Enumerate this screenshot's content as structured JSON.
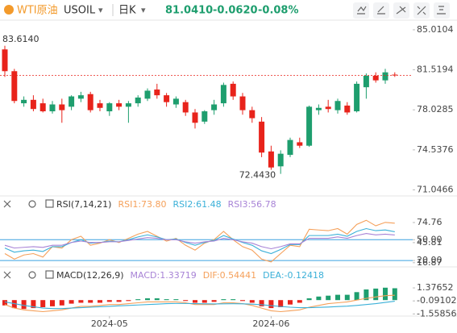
{
  "header": {
    "symbol": "WTI原油",
    "code": "USOIL",
    "period": "日K",
    "price": "81.0410",
    "change": "-0.0620",
    "percent": "-0.08%"
  },
  "chart_data": [
    {
      "type": "candlestick",
      "categories": [
        null,
        null,
        null,
        null,
        null,
        null,
        null,
        null,
        null,
        null,
        null,
        "2024-05",
        null,
        null,
        null,
        null,
        null,
        null,
        null,
        null,
        null,
        null,
        null,
        null,
        null,
        null,
        null,
        null,
        "2024-06",
        null,
        null,
        null,
        null,
        null,
        null,
        null,
        null,
        null,
        null,
        null,
        null,
        null
      ],
      "open": [
        83.3,
        81.4,
        78.6,
        78.9,
        78.6,
        77.9,
        78.5,
        78.3,
        79.0,
        79.4,
        78.6,
        77.9,
        78.6,
        78.3,
        78.6,
        79.0,
        79.8,
        79.3,
        78.5,
        78.7,
        77.8,
        77.0,
        78.0,
        78.6,
        80.3,
        79.2,
        78.0,
        77.0,
        74.4,
        73.1,
        74.1,
        75.2,
        74.9,
        78.0,
        78.3,
        78.0,
        78.4,
        77.9,
        80.0,
        81.0,
        80.6,
        81.1
      ],
      "high": [
        83.614,
        81.6,
        79.2,
        79.3,
        79.0,
        78.8,
        79.0,
        79.3,
        79.6,
        79.6,
        78.9,
        78.7,
        78.9,
        78.8,
        79.3,
        79.9,
        80.3,
        79.5,
        79.2,
        78.9,
        78.1,
        78.0,
        78.9,
        80.4,
        80.5,
        79.5,
        78.3,
        77.4,
        74.9,
        74.5,
        75.6,
        75.6,
        78.4,
        78.5,
        78.9,
        79.0,
        78.7,
        80.5,
        81.2,
        81.3,
        81.6,
        81.3
      ],
      "low": [
        80.9,
        78.6,
        78.3,
        77.9,
        77.8,
        77.7,
        76.9,
        78.0,
        78.7,
        77.8,
        77.9,
        77.5,
        78.0,
        76.9,
        78.3,
        78.8,
        79.0,
        78.3,
        78.2,
        77.5,
        76.4,
        76.8,
        77.6,
        78.3,
        78.9,
        77.6,
        76.9,
        73.9,
        72.8,
        72.443,
        73.9,
        74.7,
        74.8,
        77.6,
        77.8,
        77.7,
        77.6,
        77.8,
        79.0,
        80.4,
        80.3,
        80.9
      ],
      "close": [
        81.4,
        78.8,
        78.9,
        78.1,
        77.9,
        78.5,
        78.0,
        79.2,
        79.3,
        78.0,
        78.2,
        78.6,
        78.3,
        78.6,
        79.1,
        79.7,
        79.3,
        78.7,
        79.0,
        77.8,
        76.9,
        77.9,
        78.5,
        80.2,
        79.2,
        78.0,
        77.3,
        74.3,
        73.0,
        74.2,
        75.4,
        74.9,
        78.3,
        78.2,
        78.1,
        78.8,
        77.8,
        80.3,
        81.0,
        80.6,
        81.3,
        81.041
      ],
      "up_color": "#1e9e6e",
      "down_color": "#e8231b",
      "high_label": "83.6140",
      "low_label": "72.4430",
      "ylim": [
        70.73,
        85.85
      ],
      "yticks": [
        85.0104,
        81.5194,
        78.0285,
        74.5376,
        71.0466
      ],
      "grid": false
    },
    {
      "type": "line",
      "title": "RSI(7,14,21)",
      "series": [
        {
          "name": "RSI1:73.80",
          "color": "#f5a05a",
          "values": [
            30,
            22,
            28,
            30,
            25,
            40,
            38,
            50,
            55,
            42,
            45,
            50,
            46,
            52,
            58,
            62,
            55,
            48,
            52,
            42,
            35,
            45,
            50,
            62,
            50,
            40,
            35,
            22,
            18,
            30,
            42,
            40,
            65,
            64,
            63,
            66,
            58,
            72,
            78,
            70,
            75,
            73.8
          ]
        },
        {
          "name": "RSI2:61.48",
          "color": "#3bb0d8",
          "values": [
            38,
            32,
            34,
            35,
            33,
            40,
            40,
            46,
            50,
            45,
            46,
            48,
            47,
            50,
            54,
            57,
            54,
            50,
            51,
            46,
            42,
            46,
            49,
            56,
            51,
            46,
            42,
            34,
            30,
            36,
            43,
            43,
            56,
            56,
            56,
            58,
            55,
            62,
            66,
            63,
            64,
            61.48
          ]
        },
        {
          "name": "RSI3:56.78",
          "color": "#a883d6",
          "values": [
            42,
            38,
            39,
            40,
            39,
            42,
            42,
            46,
            48,
            46,
            46,
            47,
            47,
            49,
            51,
            53,
            52,
            50,
            50,
            47,
            45,
            47,
            48,
            52,
            50,
            47,
            45,
            40,
            37,
            40,
            44,
            44,
            52,
            52,
            52,
            54,
            52,
            56,
            59,
            57,
            58,
            56.78
          ]
        }
      ],
      "hlines": [
        50,
        20
      ],
      "hline_color": "#3aa0e0",
      "ylim": [
        12,
        91
      ],
      "yticks": [
        74.76,
        {
          "value": 50,
          "label": "50.00"
        },
        45.81,
        16.87,
        {
          "value": 20,
          "label": "20.00"
        }
      ]
    },
    {
      "type": "bar",
      "title": "MACD(12,26,9)",
      "name": "MACD:1.33719",
      "name_color": "#a883d6",
      "values": [
        -0.6,
        -0.9,
        -1.0,
        -0.9,
        -0.8,
        -0.7,
        -0.6,
        -0.4,
        -0.3,
        -0.3,
        -0.3,
        -0.2,
        -0.2,
        -0.1,
        0.1,
        0.2,
        0.2,
        0.1,
        0.1,
        -0.1,
        -0.3,
        -0.3,
        -0.2,
        0.1,
        0.1,
        -0.1,
        -0.3,
        -0.7,
        -0.9,
        -0.8,
        -0.5,
        -0.3,
        0.2,
        0.4,
        0.5,
        0.6,
        0.6,
        0.9,
        1.2,
        1.3,
        1.4,
        1.33719
      ],
      "up_color": "#1e9e6e",
      "down_color": "#e8231b",
      "series": [
        {
          "name": "DIF:0.54441",
          "color": "#f5a05a",
          "values": [
            -0.5,
            -0.9,
            -1.1,
            -1.2,
            -1.3,
            -1.2,
            -1.1,
            -0.9,
            -0.7,
            -0.7,
            -0.6,
            -0.5,
            -0.5,
            -0.4,
            -0.3,
            -0.2,
            -0.2,
            -0.2,
            -0.2,
            -0.3,
            -0.5,
            -0.5,
            -0.5,
            -0.3,
            -0.3,
            -0.4,
            -0.6,
            -0.9,
            -1.2,
            -1.3,
            -1.2,
            -1.1,
            -0.8,
            -0.6,
            -0.4,
            -0.3,
            -0.2,
            0,
            0.2,
            0.35,
            0.5,
            0.54441
          ]
        },
        {
          "name": "DEA:-0.12418",
          "color": "#3bb0d8",
          "values": [
            -0.2,
            -0.4,
            -0.6,
            -0.75,
            -0.9,
            -0.95,
            -0.95,
            -0.9,
            -0.85,
            -0.8,
            -0.75,
            -0.7,
            -0.65,
            -0.6,
            -0.55,
            -0.5,
            -0.45,
            -0.4,
            -0.38,
            -0.38,
            -0.4,
            -0.42,
            -0.43,
            -0.42,
            -0.41,
            -0.42,
            -0.45,
            -0.52,
            -0.62,
            -0.72,
            -0.8,
            -0.85,
            -0.85,
            -0.82,
            -0.78,
            -0.73,
            -0.68,
            -0.6,
            -0.5,
            -0.4,
            -0.26,
            -0.12418
          ]
        }
      ],
      "ylim": [
        -1.8,
        2.2
      ],
      "yticks": [
        1.37652,
        -0.09102,
        -1.55856
      ]
    }
  ]
}
